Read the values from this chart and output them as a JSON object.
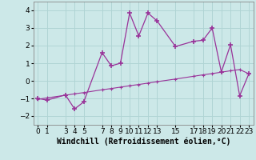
{
  "xlabel": "Windchill (Refroidissement éolien,°C)",
  "background_color": "#cce8e8",
  "grid_color": "#b0d4d4",
  "line_color": "#993399",
  "x_values": [
    0,
    1,
    3,
    4,
    5,
    7,
    8,
    9,
    10,
    11,
    12,
    13,
    15,
    17,
    18,
    19,
    20,
    21,
    22,
    23
  ],
  "y_main": [
    -1.0,
    -1.1,
    -0.8,
    -1.6,
    -1.2,
    1.6,
    0.85,
    1.0,
    3.85,
    2.55,
    3.85,
    3.4,
    1.95,
    2.25,
    2.3,
    3.0,
    0.5,
    2.05,
    -0.85,
    0.4
  ],
  "x_trend": [
    0,
    1,
    3,
    4,
    5,
    7,
    8,
    9,
    10,
    11,
    12,
    13,
    15,
    17,
    18,
    19,
    20,
    21,
    22,
    23
  ],
  "y_trend": [
    -1.05,
    -0.97,
    -0.82,
    -0.74,
    -0.67,
    -0.51,
    -0.44,
    -0.36,
    -0.28,
    -0.21,
    -0.13,
    -0.05,
    0.1,
    0.26,
    0.34,
    0.41,
    0.49,
    0.57,
    0.64,
    0.4
  ],
  "xlim": [
    -0.5,
    23.5
  ],
  "ylim": [
    -2.5,
    4.5
  ],
  "yticks": [
    -2,
    -1,
    0,
    1,
    2,
    3,
    4
  ],
  "xticks": [
    0,
    1,
    3,
    4,
    5,
    7,
    8,
    9,
    10,
    11,
    12,
    13,
    15,
    17,
    18,
    19,
    20,
    21,
    22,
    23
  ],
  "xlabel_fontsize": 7,
  "tick_fontsize": 6.5
}
